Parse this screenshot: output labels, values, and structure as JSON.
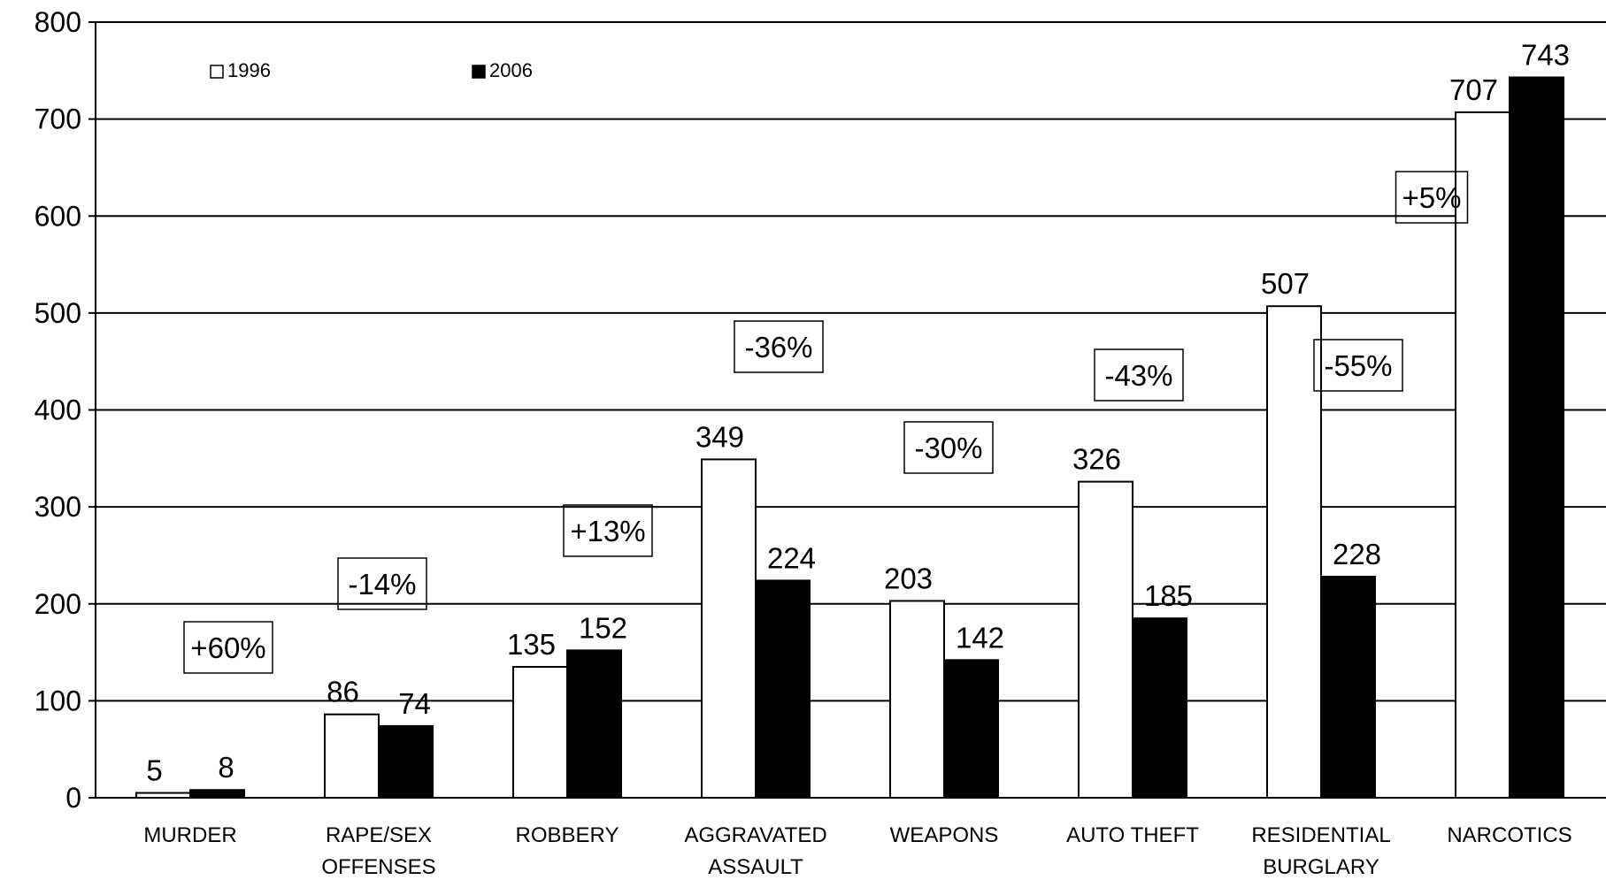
{
  "chart_data": {
    "type": "bar",
    "categories": [
      [
        "MURDER"
      ],
      [
        "RAPE/SEX",
        "OFFENSES"
      ],
      [
        "ROBBERY"
      ],
      [
        "AGGRAVATED",
        "ASSAULT"
      ],
      [
        "WEAPONS"
      ],
      [
        "AUTO THEFT"
      ],
      [
        "RESIDENTIAL",
        "BURGLARY"
      ],
      [
        "NARCOTICS"
      ]
    ],
    "series": [
      {
        "name": "1996",
        "values": [
          5,
          86,
          135,
          349,
          203,
          326,
          507,
          707
        ],
        "color": "#ffffff"
      },
      {
        "name": "2006",
        "values": [
          8,
          74,
          152,
          224,
          142,
          185,
          228,
          743
        ],
        "color": "#000000"
      }
    ],
    "percent_changes": [
      "+60%",
      "-14%",
      "+13%",
      "-36%",
      "-30%",
      "-43%",
      "-55%",
      "+5%"
    ],
    "ylim": [
      0,
      800
    ],
    "yticks": [
      "0",
      "100",
      "200",
      "300",
      "400",
      "500",
      "600",
      "700",
      "800"
    ],
    "grid": true,
    "legend_position": "top-left"
  }
}
